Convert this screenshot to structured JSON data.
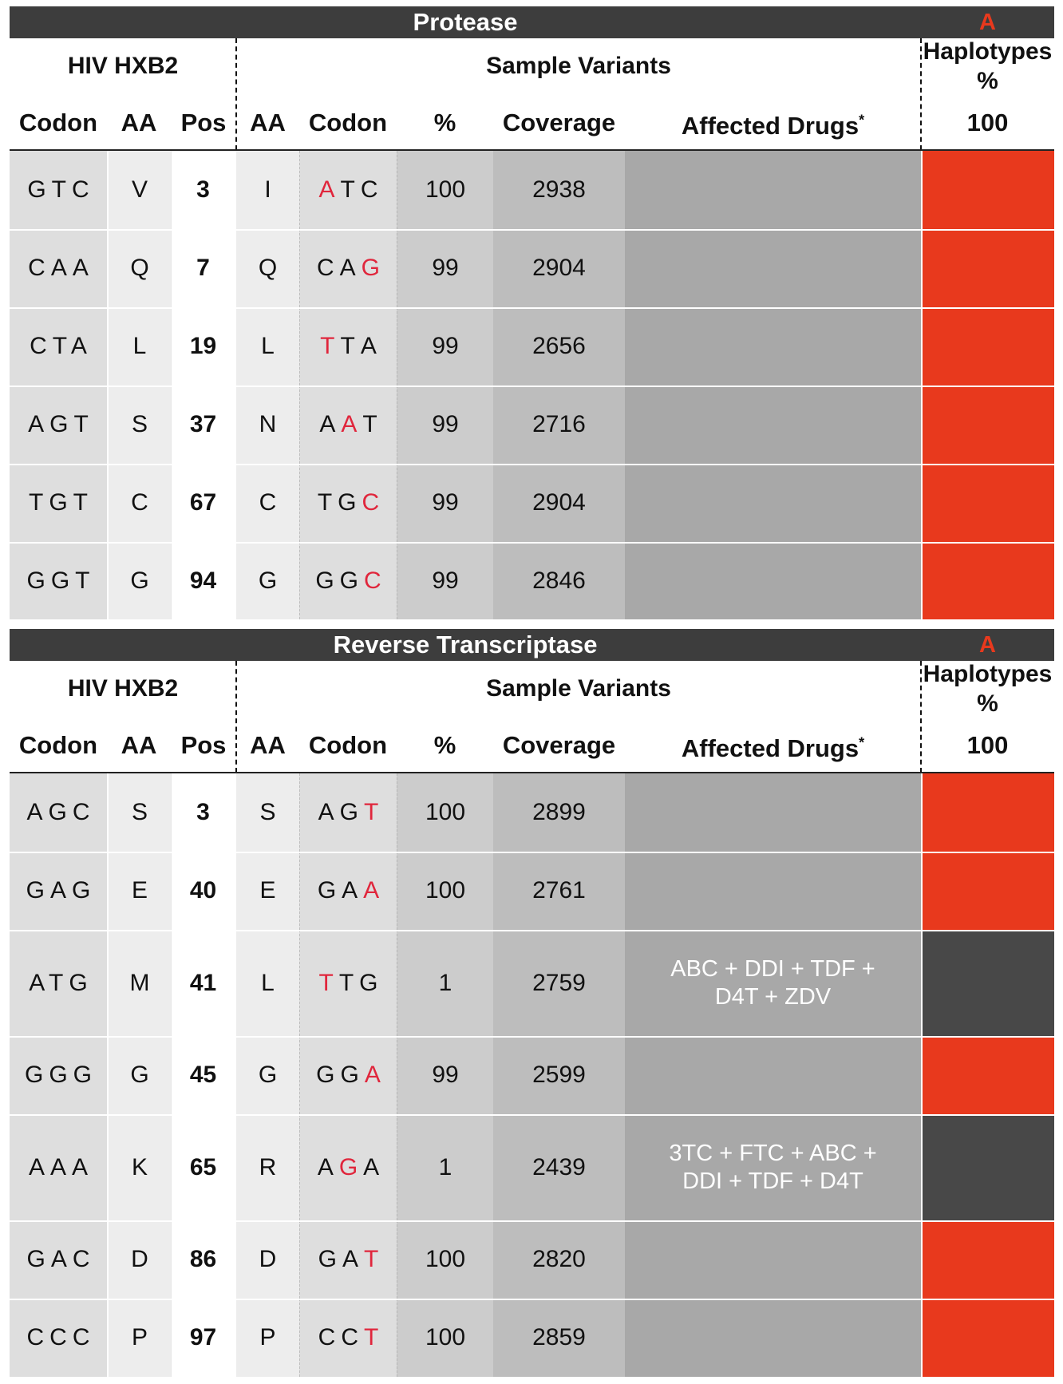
{
  "headers": {
    "hiv_hxb2": "HIV HXB2",
    "sample_variants": "Sample Variants",
    "haplotypes_1": "Haplotypes",
    "haplotypes_2": "%",
    "col_codon": "Codon",
    "col_aa": "AA",
    "col_pos": "Pos",
    "col_sample_aa": "AA",
    "col_sample_codon": "Codon",
    "col_pct": "%",
    "col_coverage": "Coverage",
    "col_affected_drugs": "Affected Drugs",
    "affected_drugs_mark": "*",
    "haplotype_pct": "100"
  },
  "colors": {
    "header_bar": "#3d3d3d",
    "haplotype_present": "#e8391d",
    "haplotype_absent": "#484848",
    "mutated_base": "#e0263c"
  },
  "sections": [
    {
      "title": "Protease",
      "haplotype_label": "A",
      "rows": [
        {
          "ref_codon": "GTC",
          "ref_aa": "V",
          "pos": "3",
          "aa": "I",
          "codon": "ATC",
          "mut_index": 0,
          "pct": "100",
          "coverage": "2938",
          "drugs": [],
          "hap": "present"
        },
        {
          "ref_codon": "CAA",
          "ref_aa": "Q",
          "pos": "7",
          "aa": "Q",
          "codon": "CAG",
          "mut_index": 2,
          "pct": "99",
          "coverage": "2904",
          "drugs": [],
          "hap": "present"
        },
        {
          "ref_codon": "CTA",
          "ref_aa": "L",
          "pos": "19",
          "aa": "L",
          "codon": "TTA",
          "mut_index": 0,
          "pct": "99",
          "coverage": "2656",
          "drugs": [],
          "hap": "present"
        },
        {
          "ref_codon": "AGT",
          "ref_aa": "S",
          "pos": "37",
          "aa": "N",
          "codon": "AAT",
          "mut_index": 1,
          "pct": "99",
          "coverage": "2716",
          "drugs": [],
          "hap": "present"
        },
        {
          "ref_codon": "TGT",
          "ref_aa": "C",
          "pos": "67",
          "aa": "C",
          "codon": "TGC",
          "mut_index": 2,
          "pct": "99",
          "coverage": "2904",
          "drugs": [],
          "hap": "present"
        },
        {
          "ref_codon": "GGT",
          "ref_aa": "G",
          "pos": "94",
          "aa": "G",
          "codon": "GGC",
          "mut_index": 2,
          "pct": "99",
          "coverage": "2846",
          "drugs": [],
          "hap": "present"
        }
      ]
    },
    {
      "title": "Reverse Transcriptase",
      "haplotype_label": "A",
      "rows": [
        {
          "ref_codon": "AGC",
          "ref_aa": "S",
          "pos": "3",
          "aa": "S",
          "codon": "AGT",
          "mut_index": 2,
          "pct": "100",
          "coverage": "2899",
          "drugs": [],
          "hap": "present"
        },
        {
          "ref_codon": "GAG",
          "ref_aa": "E",
          "pos": "40",
          "aa": "E",
          "codon": "GAA",
          "mut_index": 2,
          "pct": "100",
          "coverage": "2761",
          "drugs": [],
          "hap": "present"
        },
        {
          "ref_codon": "ATG",
          "ref_aa": "M",
          "pos": "41",
          "aa": "L",
          "codon": "TTG",
          "mut_index": 0,
          "pct": "1",
          "coverage": "2759",
          "drugs": [
            "ABC + DDI + TDF +",
            "D4T + ZDV"
          ],
          "hap": "absent"
        },
        {
          "ref_codon": "GGG",
          "ref_aa": "G",
          "pos": "45",
          "aa": "G",
          "codon": "GGA",
          "mut_index": 2,
          "pct": "99",
          "coverage": "2599",
          "drugs": [],
          "hap": "present"
        },
        {
          "ref_codon": "AAA",
          "ref_aa": "K",
          "pos": "65",
          "aa": "R",
          "codon": "AGA",
          "mut_index": 1,
          "pct": "1",
          "coverage": "2439",
          "drugs": [
            "3TC + FTC + ABC +",
            "DDI + TDF + D4T"
          ],
          "hap": "absent"
        },
        {
          "ref_codon": "GAC",
          "ref_aa": "D",
          "pos": "86",
          "aa": "D",
          "codon": "GAT",
          "mut_index": 2,
          "pct": "100",
          "coverage": "2820",
          "drugs": [],
          "hap": "present"
        },
        {
          "ref_codon": "CCC",
          "ref_aa": "P",
          "pos": "97",
          "aa": "P",
          "codon": "CCT",
          "mut_index": 2,
          "pct": "100",
          "coverage": "2859",
          "drugs": [],
          "hap": "present"
        }
      ]
    }
  ]
}
